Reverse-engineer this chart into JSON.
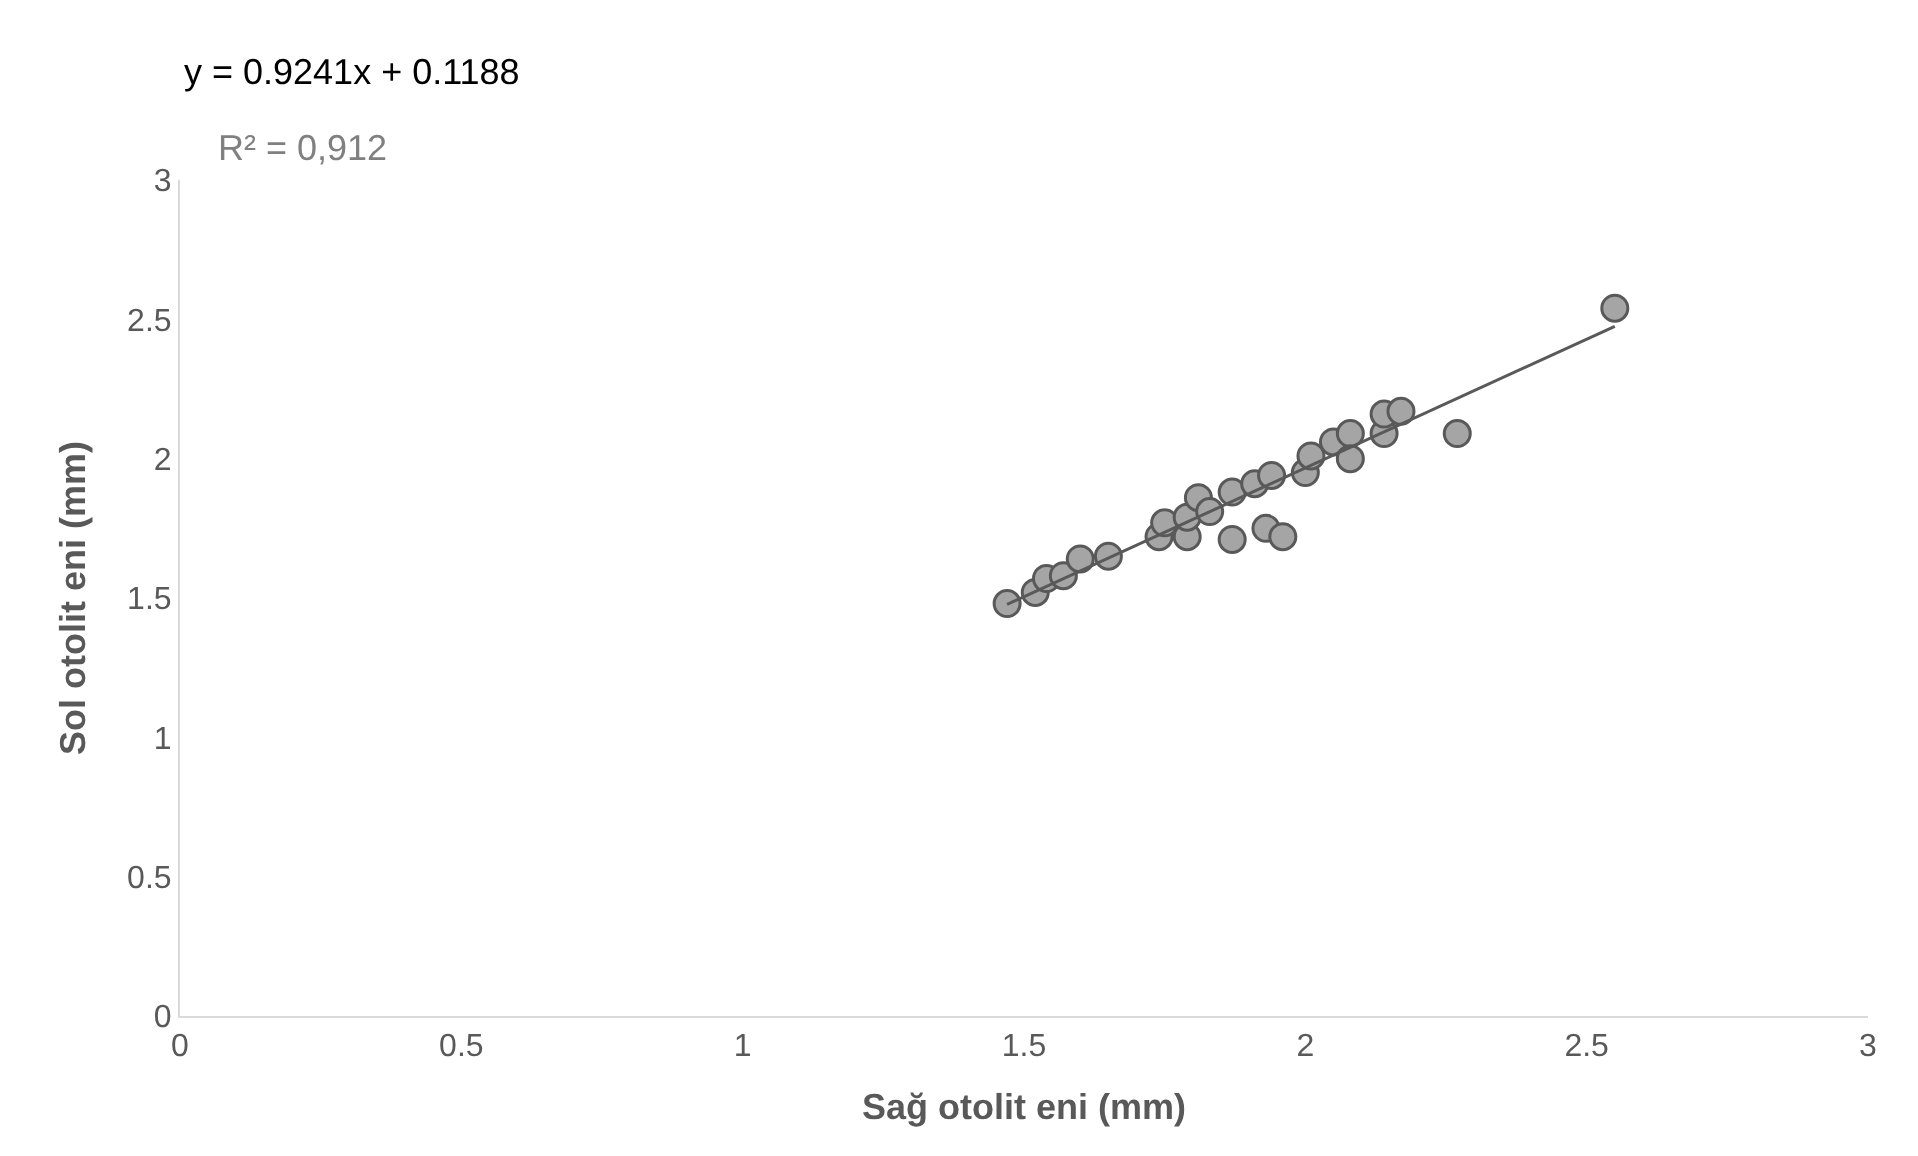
{
  "chart_data": {
    "type": "scatter",
    "xlabel": "Sağ otolit eni (mm)",
    "ylabel": "Sol otolit eni (mm)",
    "annotations": [
      "y = 0.9241x + 0.1188",
      "R² = 0,912"
    ],
    "xlim": [
      0,
      3
    ],
    "xticks": [
      0,
      0.5,
      1,
      1.5,
      2,
      2.5,
      3
    ],
    "ylim": [
      0,
      3
    ],
    "yticks": [
      0,
      0.5,
      1,
      1.5,
      2,
      2.5,
      3
    ],
    "marker": "circle",
    "series": [
      {
        "color": "#a5a5a5",
        "x": [
          1.47,
          1.52,
          1.54,
          1.57,
          1.6,
          1.65,
          1.74,
          1.75,
          1.79,
          1.79,
          1.81,
          1.83,
          1.87,
          1.87,
          1.91,
          1.94,
          1.93,
          1.96,
          2.0,
          2.01,
          2.05,
          2.08,
          2.08,
          2.14,
          2.14,
          2.17,
          2.27,
          2.55
        ],
        "values": [
          1.48,
          1.52,
          1.57,
          1.58,
          1.64,
          1.65,
          1.72,
          1.77,
          1.72,
          1.79,
          1.86,
          1.81,
          1.71,
          1.88,
          1.91,
          1.94,
          1.75,
          1.72,
          1.95,
          2.01,
          2.06,
          2.09,
          2.0,
          2.09,
          2.16,
          2.17,
          2.09,
          2.54
        ]
      },
      {
        "type": "line",
        "color": "#595959",
        "x": [
          1.47,
          2.55
        ],
        "values": [
          1.477,
          2.475
        ],
        "marker": "none",
        "line_style": "solid"
      }
    ]
  }
}
